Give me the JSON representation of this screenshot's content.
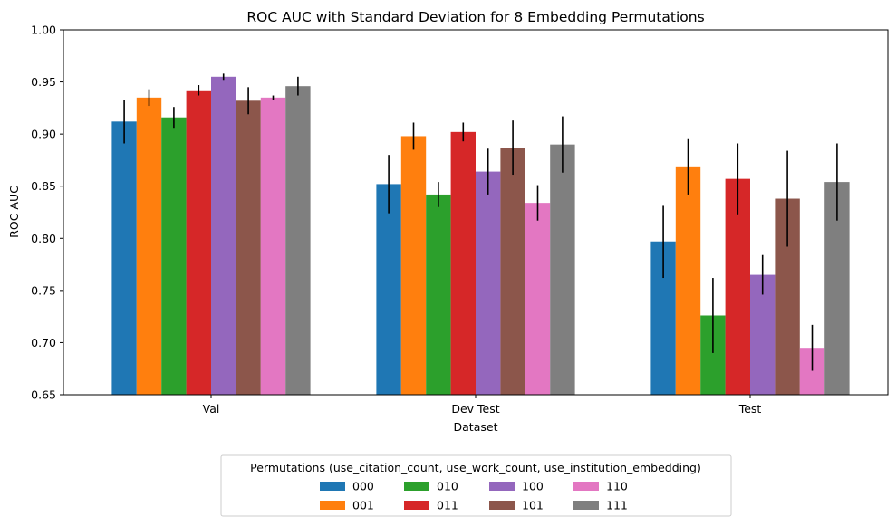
{
  "chart_data": {
    "type": "bar",
    "title": "ROC AUC with Standard Deviation for 8 Embedding Permutations",
    "xlabel": "Dataset",
    "ylabel": "ROC AUC",
    "ylim": [
      0.65,
      1.0
    ],
    "yticks": [
      "0.65",
      "0.70",
      "0.75",
      "0.80",
      "0.85",
      "0.90",
      "0.95",
      "1.00"
    ],
    "grid": false,
    "categories": [
      "Val",
      "Dev Test",
      "Test"
    ],
    "series": [
      {
        "name": "000",
        "color": "#1f77b4",
        "values": [
          0.912,
          0.852,
          0.797
        ],
        "errors": [
          0.021,
          0.028,
          0.035
        ]
      },
      {
        "name": "001",
        "color": "#ff7f0e",
        "values": [
          0.935,
          0.898,
          0.869
        ],
        "errors": [
          0.008,
          0.013,
          0.027
        ]
      },
      {
        "name": "010",
        "color": "#2ca02c",
        "values": [
          0.916,
          0.842,
          0.726
        ],
        "errors": [
          0.01,
          0.012,
          0.036
        ]
      },
      {
        "name": "011",
        "color": "#d62728",
        "values": [
          0.942,
          0.902,
          0.857
        ],
        "errors": [
          0.005,
          0.009,
          0.034
        ]
      },
      {
        "name": "100",
        "color": "#9467bd",
        "values": [
          0.955,
          0.864,
          0.765
        ],
        "errors": [
          0.003,
          0.022,
          0.019
        ]
      },
      {
        "name": "101",
        "color": "#8c564b",
        "values": [
          0.932,
          0.887,
          0.838
        ],
        "errors": [
          0.013,
          0.026,
          0.046
        ]
      },
      {
        "name": "110",
        "color": "#e377c2",
        "values": [
          0.935,
          0.834,
          0.695
        ],
        "errors": [
          0.002,
          0.017,
          0.022
        ]
      },
      {
        "name": "111",
        "color": "#7f7f7f",
        "values": [
          0.946,
          0.89,
          0.854
        ],
        "errors": [
          0.009,
          0.027,
          0.037
        ]
      }
    ],
    "legend": {
      "title": "Permutations (use_citation_count, use_work_count, use_institution_embedding)",
      "placement": "bottom-center",
      "columns": 4
    }
  }
}
